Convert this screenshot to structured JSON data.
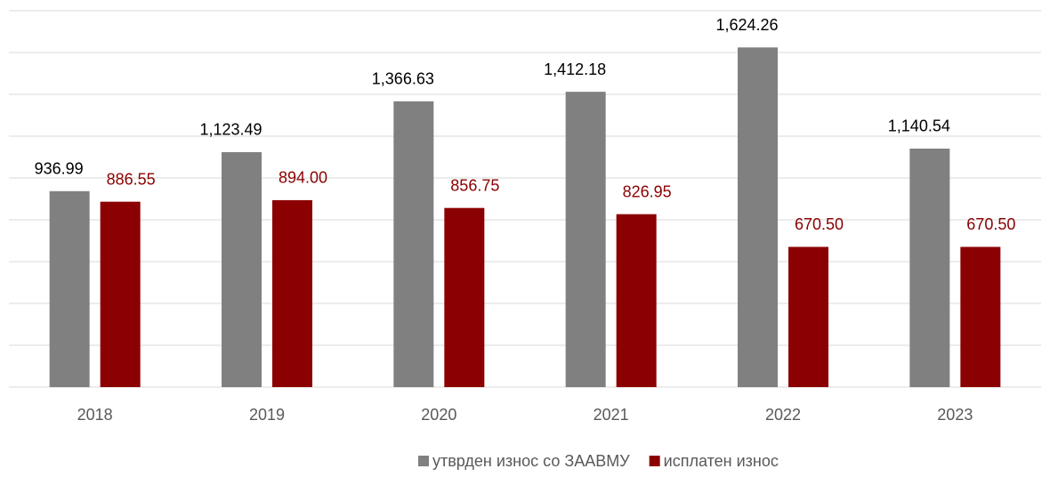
{
  "chart_data": {
    "type": "bar",
    "categories": [
      "2018",
      "2019",
      "2020",
      "2021",
      "2022",
      "2023"
    ],
    "series": [
      {
        "name": "утврден износ со ЗААВМУ",
        "color": "#808080",
        "values": [
          936.99,
          1123.49,
          1366.63,
          1412.18,
          1624.26,
          1140.54
        ],
        "value_labels": [
          "936.99",
          "1,123.49",
          "1,366.63",
          "1,412.18",
          "1,624.26",
          "1,140.54"
        ]
      },
      {
        "name": "исплатен износ",
        "color": "#8b0000",
        "values": [
          886.55,
          894.0,
          856.75,
          826.95,
          670.5,
          670.5
        ],
        "value_labels": [
          "886.55",
          "894.00",
          "856.75",
          "826.95",
          "670.50",
          "670.50"
        ]
      }
    ],
    "ylim": [
      0,
      1800
    ],
    "yticks": [
      0,
      200,
      400,
      600,
      800,
      1000,
      1200,
      1400,
      1600,
      1800
    ],
    "grid": true,
    "legend": "bottom"
  }
}
